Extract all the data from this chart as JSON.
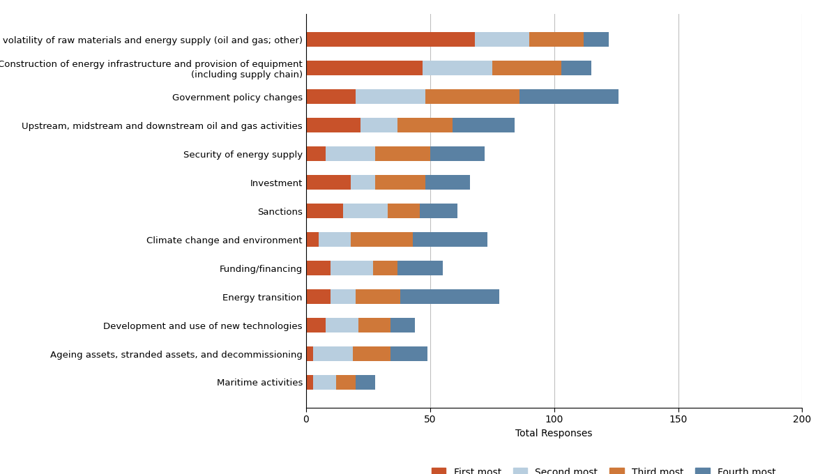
{
  "categories": [
    "Price volatility of raw materials and energy supply (oil and gas; other)",
    "Construction of energy infrastructure and provision of equipment\n(including supply chain)",
    "Government policy changes",
    "Upstream, midstream and downstream oil and gas activities",
    "Security of energy supply",
    "Investment",
    "Sanctions",
    "Climate change and environment",
    "Funding/financing",
    "Energy transition",
    "Development and use of new technologies",
    "Ageing assets, stranded assets, and decommissioning",
    "Maritime activities"
  ],
  "first_most": [
    68,
    47,
    20,
    22,
    8,
    18,
    15,
    5,
    10,
    10,
    8,
    3,
    3
  ],
  "second_most": [
    22,
    28,
    28,
    15,
    20,
    10,
    18,
    13,
    17,
    10,
    13,
    16,
    9
  ],
  "third_most": [
    22,
    28,
    38,
    22,
    22,
    20,
    13,
    25,
    10,
    18,
    13,
    15,
    8
  ],
  "fourth_most": [
    10,
    12,
    40,
    25,
    22,
    18,
    15,
    30,
    18,
    40,
    10,
    15,
    8
  ],
  "colors": {
    "first_most": "#C8522A",
    "second_most": "#B8CEDF",
    "third_most": "#CF7839",
    "fourth_most": "#5A81A3"
  },
  "legend_labels": [
    "First most",
    "Second most",
    "Third most",
    "Fourth most"
  ],
  "xlabel": "Total Responses",
  "xlim": [
    0,
    200
  ],
  "xticks": [
    0,
    50,
    100,
    150,
    200
  ],
  "background_color": "#ffffff",
  "grid_color": "#c0c0c0"
}
